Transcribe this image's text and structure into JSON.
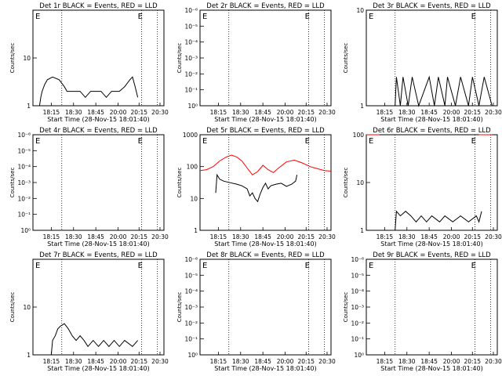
{
  "chart_data": [
    {
      "type": "line",
      "title": "Det 1r BLACK = Events, RED = LLD",
      "xlabel": "Start Time (28-Nov-15 18:01:40)",
      "ylabel": "Counts/sec",
      "x_ticks": [
        "18:15",
        "18:30",
        "18:45",
        "20:00",
        "20:15",
        "20:30"
      ],
      "y_ticks": [
        "1",
        "10"
      ],
      "y_scale": "log",
      "ylim": [
        1,
        100
      ],
      "annotation": "E",
      "series": [
        {
          "color": "#000000",
          "values": [
            [
              0.05,
              1.0
            ],
            [
              0.06,
              1.5
            ],
            [
              0.07,
              2.0
            ],
            [
              0.09,
              2.8
            ],
            [
              0.11,
              3.5
            ],
            [
              0.15,
              4.0
            ],
            [
              0.2,
              3.5
            ],
            [
              0.24,
              2.5
            ],
            [
              0.26,
              2.0
            ],
            [
              0.3,
              2.0
            ],
            [
              0.36,
              2.0
            ],
            [
              0.4,
              1.5
            ],
            [
              0.44,
              2.0
            ],
            [
              0.48,
              2.0
            ],
            [
              0.52,
              2.0
            ],
            [
              0.56,
              1.5
            ],
            [
              0.6,
              2.0
            ],
            [
              0.66,
              2.0
            ],
            [
              0.7,
              2.5
            ],
            [
              0.74,
              3.5
            ],
            [
              0.76,
              4.0
            ],
            [
              0.78,
              2.5
            ],
            [
              0.8,
              1.5
            ]
          ]
        }
      ]
    },
    {
      "type": "line",
      "title": "Det 2r BLACK = Events, RED = LLD",
      "xlabel": "Start Time (28-Nov-15 18:01:40)",
      "ylabel": "Counts/sec",
      "x_ticks": [
        "18:15",
        "18:30",
        "18:45",
        "20:00",
        "20:15",
        "20:30"
      ],
      "y_ticks": [
        "10⁰",
        "10⁻¹",
        "10⁻²",
        "10⁻³",
        "10⁻⁴",
        "10⁻⁵",
        "10⁻⁶"
      ],
      "y_scale": "log",
      "annotation": "E",
      "series": []
    },
    {
      "type": "line",
      "title": "Det 3r BLACK = Events, RED = LLD",
      "xlabel": "Start Time (28-Nov-15 18:01:40)",
      "ylabel": "Counts/sec",
      "x_ticks": [
        "18:15",
        "18:30",
        "18:45",
        "20:00",
        "20:15",
        "20:30"
      ],
      "y_ticks": [
        "1",
        "10"
      ],
      "y_scale": "log",
      "ylim": [
        1,
        10
      ],
      "annotation": "E",
      "series": [
        {
          "color": "#000000",
          "values": [
            [
              0.22,
              1.0
            ],
            [
              0.23,
              2.0
            ],
            [
              0.26,
              1.0
            ],
            [
              0.28,
              2.0
            ],
            [
              0.32,
              1.0
            ],
            [
              0.35,
              2.0
            ],
            [
              0.4,
              1.0
            ],
            [
              0.48,
              2.0
            ],
            [
              0.52,
              1.0
            ],
            [
              0.55,
              2.0
            ],
            [
              0.6,
              1.0
            ],
            [
              0.62,
              2.0
            ],
            [
              0.68,
              1.0
            ],
            [
              0.72,
              2.0
            ],
            [
              0.78,
              1.0
            ],
            [
              0.81,
              2.0
            ],
            [
              0.86,
              1.0
            ],
            [
              0.9,
              2.0
            ],
            [
              0.96,
              1.0
            ]
          ]
        }
      ]
    },
    {
      "type": "line",
      "title": "Det 4r BLACK = Events, RED = LLD",
      "xlabel": "Start Time (28-Nov-15 18:01:40)",
      "ylabel": "Counts/sec",
      "x_ticks": [
        "18:15",
        "18:30",
        "18:45",
        "20:00",
        "20:15",
        "20:30"
      ],
      "y_ticks": [
        "10⁰",
        "10⁻¹",
        "10⁻²",
        "10⁻³",
        "10⁻⁴",
        "10⁻⁵",
        "10⁻⁶"
      ],
      "y_scale": "log",
      "annotation": "E",
      "series": []
    },
    {
      "type": "line",
      "title": "Det 5r BLACK = Events, RED = LLD",
      "xlabel": "Start Time (28-Nov-15 18:01:40)",
      "ylabel": "Counts/sec",
      "x_ticks": [
        "18:15",
        "18:30",
        "18:45",
        "20:00",
        "20:15",
        "20:30"
      ],
      "y_ticks": [
        "1",
        "10",
        "100",
        "1000"
      ],
      "y_scale": "log",
      "ylim": [
        1,
        1000
      ],
      "annotation": "E",
      "series": [
        {
          "color": "#000000",
          "values": [
            [
              0.12,
              15
            ],
            [
              0.13,
              55
            ],
            [
              0.15,
              40
            ],
            [
              0.18,
              35
            ],
            [
              0.22,
              32
            ],
            [
              0.28,
              28
            ],
            [
              0.32,
              25
            ],
            [
              0.36,
              20
            ],
            [
              0.38,
              12
            ],
            [
              0.4,
              15
            ],
            [
              0.42,
              10
            ],
            [
              0.44,
              8
            ],
            [
              0.46,
              14
            ],
            [
              0.48,
              22
            ],
            [
              0.5,
              30
            ],
            [
              0.52,
              20
            ],
            [
              0.54,
              25
            ],
            [
              0.58,
              28
            ],
            [
              0.62,
              30
            ],
            [
              0.66,
              24
            ],
            [
              0.7,
              28
            ],
            [
              0.73,
              35
            ],
            [
              0.74,
              55
            ]
          ]
        },
        {
          "color": "#ff0000",
          "values": [
            [
              0.0,
              75
            ],
            [
              0.05,
              80
            ],
            [
              0.1,
              100
            ],
            [
              0.15,
              150
            ],
            [
              0.2,
              200
            ],
            [
              0.24,
              230
            ],
            [
              0.28,
              200
            ],
            [
              0.32,
              150
            ],
            [
              0.36,
              90
            ],
            [
              0.4,
              55
            ],
            [
              0.44,
              70
            ],
            [
              0.48,
              110
            ],
            [
              0.52,
              80
            ],
            [
              0.56,
              65
            ],
            [
              0.6,
              90
            ],
            [
              0.66,
              140
            ],
            [
              0.72,
              160
            ],
            [
              0.78,
              130
            ],
            [
              0.84,
              100
            ],
            [
              0.9,
              85
            ],
            [
              0.95,
              75
            ],
            [
              1.0,
              72
            ]
          ]
        }
      ]
    },
    {
      "type": "line",
      "title": "Det 6r BLACK = Events, RED = LLD",
      "xlabel": "Start Time (28-Nov-15 18:01:40)",
      "ylabel": "Counts/sec",
      "x_ticks": [
        "18:15",
        "18:30",
        "18:45",
        "20:00",
        "20:15",
        "20:30"
      ],
      "y_ticks": [
        "1",
        "10",
        "100"
      ],
      "y_scale": "log",
      "ylim": [
        1,
        100
      ],
      "annotation": "E",
      "series": [
        {
          "color": "#000000",
          "values": [
            [
              0.22,
              1.0
            ],
            [
              0.23,
              2.5
            ],
            [
              0.26,
              2.0
            ],
            [
              0.3,
              2.5
            ],
            [
              0.34,
              2.0
            ],
            [
              0.38,
              1.5
            ],
            [
              0.42,
              2.0
            ],
            [
              0.46,
              1.5
            ],
            [
              0.5,
              2.0
            ],
            [
              0.56,
              1.5
            ],
            [
              0.6,
              2.0
            ],
            [
              0.66,
              1.5
            ],
            [
              0.72,
              2.0
            ],
            [
              0.78,
              1.5
            ],
            [
              0.84,
              2.0
            ],
            [
              0.86,
              1.5
            ],
            [
              0.88,
              2.5
            ]
          ]
        },
        {
          "color": "#ff0000",
          "values": [
            [
              0.0,
              100
            ],
            [
              0.1,
              100
            ]
          ]
        },
        {
          "color": "#ff0000",
          "values": [
            [
              0.86,
              100
            ],
            [
              0.96,
              100
            ]
          ]
        }
      ]
    },
    {
      "type": "line",
      "title": "Det 7r BLACK = Events, RED = LLD",
      "xlabel": "Start Time (28-Nov-15 18:01:40)",
      "ylabel": "Counts/sec",
      "x_ticks": [
        "18:15",
        "18:30",
        "18:45",
        "20:00",
        "20:15",
        "20:30"
      ],
      "y_ticks": [
        "1",
        "10"
      ],
      "y_scale": "log",
      "ylim": [
        1,
        100
      ],
      "annotation": "E",
      "series": [
        {
          "color": "#000000",
          "values": [
            [
              0.14,
              1.0
            ],
            [
              0.15,
              2.0
            ],
            [
              0.17,
              2.5
            ],
            [
              0.19,
              3.5
            ],
            [
              0.21,
              4.0
            ],
            [
              0.24,
              4.5
            ],
            [
              0.27,
              3.5
            ],
            [
              0.3,
              2.5
            ],
            [
              0.33,
              2.0
            ],
            [
              0.36,
              2.5
            ],
            [
              0.39,
              2.0
            ],
            [
              0.42,
              1.5
            ],
            [
              0.46,
              2.0
            ],
            [
              0.5,
              1.5
            ],
            [
              0.54,
              2.0
            ],
            [
              0.58,
              1.5
            ],
            [
              0.62,
              2.0
            ],
            [
              0.66,
              1.5
            ],
            [
              0.7,
              2.0
            ],
            [
              0.76,
              1.5
            ],
            [
              0.8,
              2.0
            ]
          ]
        }
      ]
    },
    {
      "type": "line",
      "title": "Det 8r BLACK = Events, RED = LLD",
      "xlabel": "Start Time (28-Nov-15 18:01:40)",
      "ylabel": "Counts/sec",
      "x_ticks": [
        "18:15",
        "18:30",
        "18:45",
        "20:00",
        "20:15",
        "20:30"
      ],
      "y_ticks": [
        "10⁰",
        "10⁻¹",
        "10⁻²",
        "10⁻³",
        "10⁻⁴",
        "10⁻⁵",
        "10⁻⁶"
      ],
      "y_scale": "log",
      "annotation": "E",
      "series": []
    },
    {
      "type": "line",
      "title": "Det 9r BLACK = Events, RED = LLD",
      "xlabel": "Start Time (28-Nov-15 18:01:40)",
      "ylabel": "Counts/sec",
      "x_ticks": [
        "18:15",
        "18:30",
        "18:45",
        "20:00",
        "20:15",
        "20:30"
      ],
      "y_ticks": [
        "10⁰",
        "10⁻¹",
        "10⁻²",
        "10⁻³",
        "10⁻⁴",
        "10⁻⁵",
        "10⁻⁶"
      ],
      "y_scale": "log",
      "annotation": "E",
      "series": []
    }
  ]
}
